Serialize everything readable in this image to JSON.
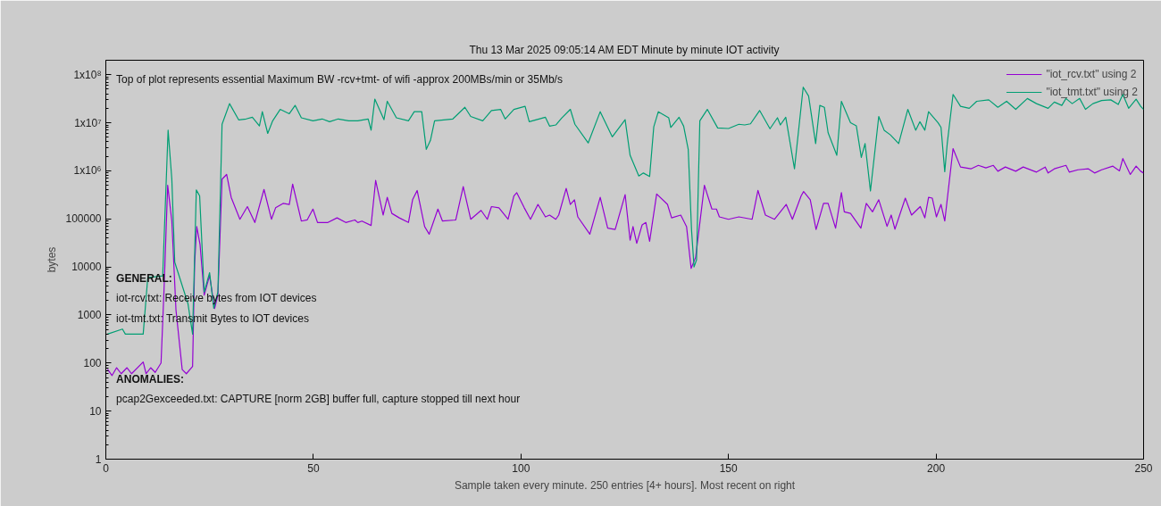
{
  "chart_data": {
    "type": "line",
    "title": "Thu 13 Mar 2025 09:05:14 AM EDT Minute by minute IOT activity",
    "xlabel": "Sample taken every minute. 250 entries [4+ hours]. Most recent on right",
    "ylabel": "bytes",
    "xlim": [
      0,
      250
    ],
    "xticks": [
      0,
      50,
      100,
      150,
      200,
      250
    ],
    "ylim": [
      1,
      200000000
    ],
    "yticks": [
      1,
      10,
      100,
      1000,
      10000,
      100000,
      {
        "value": 1000000,
        "label": "1x10⁶"
      },
      {
        "value": 10000000,
        "label": "1x10⁷"
      },
      {
        "value": 100000000,
        "label": "1x10⁸"
      }
    ],
    "log": "y",
    "grid": false,
    "legend": "top right",
    "marker": "none",
    "line_style": "solid",
    "annotations": [
      "Top of plot represents essential Maximum BW -rcv+tmt- of wifi -approx 200MBs/min or 35Mb/s",
      "GENERAL:",
      "iot-rcv.txt: Receive bytes from IOT devices",
      "iot-tmt.txt: Transmit Bytes to IOT devices",
      "ANOMALIES:",
      "pcap2Gexceeded.txt: CAPTURE [norm 2GB] buffer full, capture stopped till next hour"
    ],
    "series": [
      {
        "name": "\"iot_rcv.txt\" using 2",
        "color": "#9400d3",
        "x": [
          0.4,
          1.5,
          2.6,
          3.7,
          5.1,
          6.2,
          9.0,
          9.7,
          10.8,
          11.9,
          13.3,
          14.0,
          14.9,
          15.9,
          16.9,
          18.4,
          19.4,
          20.9,
          21.4,
          21.9,
          22.7,
          23.7,
          25.0,
          26.2,
          27.0,
          28.0,
          29.1,
          30.2,
          32.3,
          34.1,
          35.9,
          38.1,
          39.9,
          40.9,
          42.7,
          44.2,
          45.0,
          47.1,
          48.5,
          49.9,
          51.0,
          53.5,
          55.7,
          57.8,
          60.0,
          60.7,
          61.7,
          63.9,
          65.0,
          66.8,
          67.8,
          68.9,
          70.7,
          72.9,
          73.9,
          75.0,
          76.8,
          77.9,
          80.0,
          81.1,
          84.3,
          86.1,
          87.9,
          90.4,
          91.9,
          92.9,
          94.7,
          96.9,
          98.3,
          99.0,
          100.8,
          102.3,
          104.1,
          105.9,
          106.9,
          108.4,
          109.1,
          110.9,
          111.9,
          112.9,
          113.7,
          116.6,
          119.1,
          120.9,
          122.7,
          125.1,
          126.3,
          127.0,
          127.9,
          129.2,
          130.1,
          131.0,
          132.7,
          135.3,
          136.3,
          138.5,
          139.9,
          141.0,
          142.1,
          144.2,
          146.0,
          147.1,
          147.8,
          150.0,
          152.5,
          155.7,
          157.1,
          158.9,
          161.1,
          163.9,
          165.4,
          167.5,
          168.1,
          169.7,
          171.1,
          172.9,
          174.0,
          175.8,
          177.2,
          177.9,
          179.4,
          181.9,
          183.2,
          184.7,
          186.2,
          188.2,
          189.2,
          190.1,
          192.6,
          194.1,
          196.2,
          197.3,
          198.2,
          199.1,
          200.1,
          201.2,
          202.1,
          204.1,
          205.9,
          208.4,
          210.2,
          212.0,
          213.8,
          214.9,
          216.7,
          219.2,
          221.0,
          224.2,
          226.3,
          227.0,
          228.5,
          231.3,
          232.1,
          234.2,
          236.7,
          238.2,
          239.9,
          242.6,
          244.2,
          245.0,
          246.8,
          248.2,
          249.3,
          250
        ],
        "values": [
          75,
          55,
          80,
          60,
          80,
          60,
          105,
          60,
          80,
          64,
          100,
          3000,
          500000,
          90000,
          1260,
          73,
          60,
          85,
          12000,
          69000,
          29000,
          2600,
          6600,
          1360,
          2600,
          670000,
          840000,
          280000,
          98000,
          180000,
          84000,
          410000,
          98000,
          170000,
          210000,
          200000,
          530000,
          90000,
          95000,
          160000,
          84000,
          84000,
          105000,
          84000,
          95000,
          84000,
          90000,
          73000,
          630000,
          120000,
          280000,
          130000,
          105000,
          84000,
          250000,
          390000,
          69000,
          48000,
          160000,
          90000,
          95000,
          470000,
          98000,
          150000,
          98000,
          180000,
          170000,
          98000,
          300000,
          350000,
          170000,
          98000,
          200000,
          110000,
          120000,
          98000,
          120000,
          430000,
          200000,
          250000,
          110000,
          48000,
          280000,
          64000,
          60000,
          320000,
          36000,
          69000,
          31000,
          75000,
          84000,
          34000,
          330000,
          200000,
          105000,
          120000,
          69000,
          9300,
          16000,
          500000,
          160000,
          160000,
          110000,
          98000,
          110000,
          98000,
          390000,
          120000,
          98000,
          200000,
          98000,
          300000,
          370000,
          250000,
          60000,
          210000,
          210000,
          64000,
          350000,
          140000,
          130000,
          64000,
          210000,
          140000,
          250000,
          70000,
          120000,
          61000,
          270000,
          120000,
          180000,
          105000,
          280000,
          270000,
          110000,
          200000,
          90000,
          2900000,
          1200000,
          1100000,
          1300000,
          1150000,
          1300000,
          980000,
          1200000,
          980000,
          1200000,
          940000,
          1200000,
          900000,
          1100000,
          1300000,
          940000,
          1050000,
          1100000,
          900000,
          1050000,
          1250000,
          1000000,
          1800000,
          840000,
          1250000,
          980000,
          900000
        ]
      },
      {
        "name": "\"iot_tmt.txt\" using 2",
        "color": "#009e73",
        "x": [
          0.4,
          4.0,
          4.7,
          9.0,
          10.1,
          13.7,
          15.0,
          15.9,
          16.6,
          19.8,
          20.9,
          21.8,
          22.6,
          23.7,
          25.0,
          26.0,
          27.0,
          28.0,
          29.8,
          32.0,
          33.8,
          35.3,
          37.0,
          37.7,
          39.0,
          40.2,
          42.0,
          44.2,
          45.6,
          47.1,
          49.9,
          52.1,
          53.9,
          56.0,
          58.5,
          60.7,
          63.2,
          63.9,
          64.8,
          67.0,
          67.8,
          70.0,
          72.9,
          74.3,
          76.1,
          77.2,
          78.2,
          79.2,
          83.6,
          86.5,
          87.9,
          90.8,
          92.9,
          95.1,
          96.2,
          98.3,
          101.0,
          102.0,
          105.9,
          106.9,
          108.4,
          109.8,
          111.9,
          113.0,
          116.2,
          119.1,
          122.0,
          125.1,
          126.3,
          128.4,
          129.5,
          131.0,
          132.0,
          133.1,
          135.6,
          136.1,
          138.1,
          139.2,
          140.3,
          141.1,
          141.7,
          142.3,
          143.1,
          144.9,
          147.4,
          150.0,
          152.5,
          153.9,
          155.3,
          157.5,
          160.0,
          161.8,
          162.5,
          163.8,
          165.9,
          168.0,
          169.3,
          171.0,
          172.0,
          173.1,
          174.0,
          176.1,
          177.2,
          179.4,
          180.8,
          182.0,
          182.9,
          184.2,
          186.2,
          187.5,
          189.0,
          191.0,
          193.2,
          195.1,
          196.1,
          197.3,
          198.2,
          200.5,
          201.2,
          202.1,
          202.7,
          204.1,
          205.9,
          208.0,
          209.8,
          212.7,
          214.9,
          217.0,
          219.2,
          222.0,
          224.2,
          227.0,
          228.5,
          230.3,
          231.3,
          232.8,
          234.6,
          236.0,
          237.8,
          239.9,
          242.1,
          243.9,
          245.0,
          246.4,
          248.2,
          249.3,
          250
        ],
        "values": [
          400,
          510,
          400,
          400,
          6000,
          6500,
          7000000,
          670000,
          12600,
          1700,
          400,
          400000,
          300000,
          3000,
          7600,
          1380,
          3000,
          9300000,
          25000000,
          11500000,
          12000000,
          13000000,
          8600000,
          17000000,
          6000000,
          11000000,
          19000000,
          15400000,
          23000000,
          12700000,
          11000000,
          12000000,
          10500000,
          12000000,
          11000000,
          11000000,
          12000000,
          7000000,
          31000000,
          11600000,
          28000000,
          12700000,
          11000000,
          17000000,
          17000000,
          2800000,
          4300000,
          11000000,
          12000000,
          21000000,
          13500000,
          11000000,
          18000000,
          19000000,
          12000000,
          19000000,
          22000000,
          10500000,
          13000000,
          8500000,
          9000000,
          12500000,
          19000000,
          9300000,
          3800000,
          17000000,
          5100000,
          11600000,
          2100000,
          780000,
          900000,
          760000,
          8200000,
          17000000,
          12700000,
          8000000,
          13000000,
          8500000,
          2800000,
          59000,
          10000,
          14000,
          11000000,
          19000000,
          7800000,
          7600000,
          9300000,
          9000000,
          9500000,
          18000000,
          7500000,
          12700000,
          9000000,
          13000000,
          1100000,
          55000000,
          36000000,
          3700000,
          23000000,
          21000000,
          6200000,
          2100000,
          28000000,
          10000000,
          8600000,
          1900000,
          3700000,
          380000,
          13500000,
          7000000,
          5600000,
          3700000,
          19000000,
          7000000,
          10500000,
          7000000,
          17000000,
          10000000,
          8000000,
          960000,
          3700000,
          39000000,
          22000000,
          20000000,
          28000000,
          30000000,
          21000000,
          28000000,
          19000000,
          32000000,
          25000000,
          20000000,
          27000000,
          23000000,
          32000000,
          25000000,
          32000000,
          19000000,
          25000000,
          29000000,
          30000000,
          24000000,
          39000000,
          20000000,
          31000000,
          22000000,
          19000000
        ]
      }
    ]
  }
}
